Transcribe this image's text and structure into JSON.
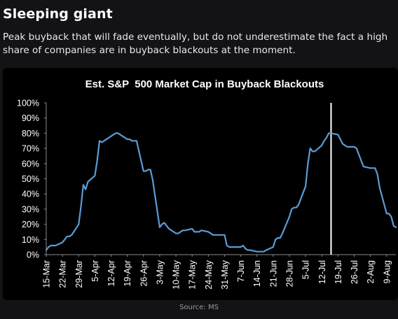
{
  "headline": "Sleeping giant",
  "subtitle": "Peak buyback that will fade eventually, but do not underestimate the fact a high share of companies are in buyback blackouts at the moment.",
  "source": "Source: MS",
  "chart_data": {
    "type": "line",
    "title": "Est. S&P  500 Market Cap in Buyback Blackouts",
    "xlabel": "",
    "ylabel": "",
    "ylim": [
      0,
      100
    ],
    "y_ticks": [
      "0%",
      "10%",
      "20%",
      "30%",
      "40%",
      "50%",
      "60%",
      "70%",
      "80%",
      "90%",
      "100%"
    ],
    "x_ticks": [
      "15-Mar",
      "22-Mar",
      "29-Mar",
      "5-Apr",
      "12-Apr",
      "19-Apr",
      "26-Apr",
      "3-May",
      "10-May",
      "17-May",
      "24-May",
      "31-May",
      "7-Jun",
      "14-Jun",
      "21-Jun",
      "28-Jun",
      "5-Jul",
      "12-Jul",
      "19-Jul",
      "26-Jul",
      "2-Aug",
      "9-Aug"
    ],
    "grid": false,
    "line_color": "#5b9bd5",
    "marker_color": "#ffffff",
    "marker_x": "16-Jul",
    "series": [
      {
        "x": [
          "15-Mar",
          "16-Mar",
          "17-Mar",
          "18-Mar",
          "19-Mar",
          "22-Mar",
          "23-Mar",
          "24-Mar",
          "25-Mar",
          "26-Mar",
          "29-Mar",
          "30-Mar",
          "31-Mar",
          "1-Apr",
          "2-Apr",
          "5-Apr",
          "6-Apr",
          "7-Apr",
          "8-Apr",
          "9-Apr",
          "12-Apr",
          "13-Apr",
          "14-Apr",
          "15-Apr",
          "16-Apr",
          "19-Apr",
          "20-Apr",
          "21-Apr",
          "22-Apr",
          "23-Apr",
          "26-Apr",
          "27-Apr",
          "28-Apr",
          "29-Apr",
          "30-Apr",
          "3-May",
          "4-May",
          "5-May",
          "6-May",
          "7-May",
          "10-May",
          "11-May",
          "12-May",
          "13-May",
          "14-May",
          "17-May",
          "18-May",
          "19-May",
          "20-May",
          "21-May",
          "24-May",
          "25-May",
          "26-May",
          "27-May",
          "28-May",
          "31-May",
          "1-Jun",
          "2-Jun",
          "3-Jun",
          "4-Jun",
          "7-Jun",
          "8-Jun",
          "9-Jun",
          "10-Jun",
          "11-Jun",
          "14-Jun",
          "15-Jun",
          "16-Jun",
          "17-Jun",
          "18-Jun",
          "21-Jun",
          "22-Jun",
          "23-Jun",
          "24-Jun",
          "25-Jun",
          "28-Jun",
          "29-Jun",
          "30-Jun",
          "1-Jul",
          "2-Jul",
          "5-Jul",
          "6-Jul",
          "7-Jul",
          "8-Jul",
          "9-Jul",
          "12-Jul",
          "13-Jul",
          "14-Jul",
          "15-Jul",
          "16-Jul",
          "19-Jul",
          "20-Jul",
          "21-Jul",
          "22-Jul",
          "23-Jul",
          "26-Jul",
          "27-Jul",
          "28-Jul",
          "29-Jul",
          "30-Jul",
          "2-Aug",
          "3-Aug",
          "4-Aug",
          "5-Aug",
          "6-Aug",
          "9-Aug",
          "10-Aug",
          "11-Aug",
          "12-Aug",
          "13-Aug"
        ],
        "y": [
          3,
          5,
          6,
          6,
          6,
          8,
          10,
          12,
          12,
          13,
          20,
          32,
          46,
          43,
          48,
          52,
          62,
          75,
          74,
          75,
          78,
          79,
          80,
          80,
          79,
          76,
          76,
          75,
          75,
          75,
          55,
          55,
          56,
          56,
          49,
          18,
          20,
          21,
          19,
          17,
          14,
          14,
          15,
          16,
          16,
          17,
          15,
          15,
          15,
          16,
          15,
          14,
          13,
          13,
          13,
          13,
          6,
          5,
          5,
          5,
          5,
          6,
          4,
          3,
          3,
          2,
          2,
          2,
          2,
          3,
          5,
          10,
          11,
          11,
          14,
          25,
          30,
          31,
          31,
          33,
          45,
          60,
          70,
          68,
          68,
          72,
          75,
          77,
          80,
          80,
          79,
          76,
          73,
          72,
          71,
          71,
          70,
          66,
          62,
          58,
          57,
          57,
          57,
          53,
          44,
          27,
          27,
          25,
          19,
          18
        ]
      }
    ]
  }
}
